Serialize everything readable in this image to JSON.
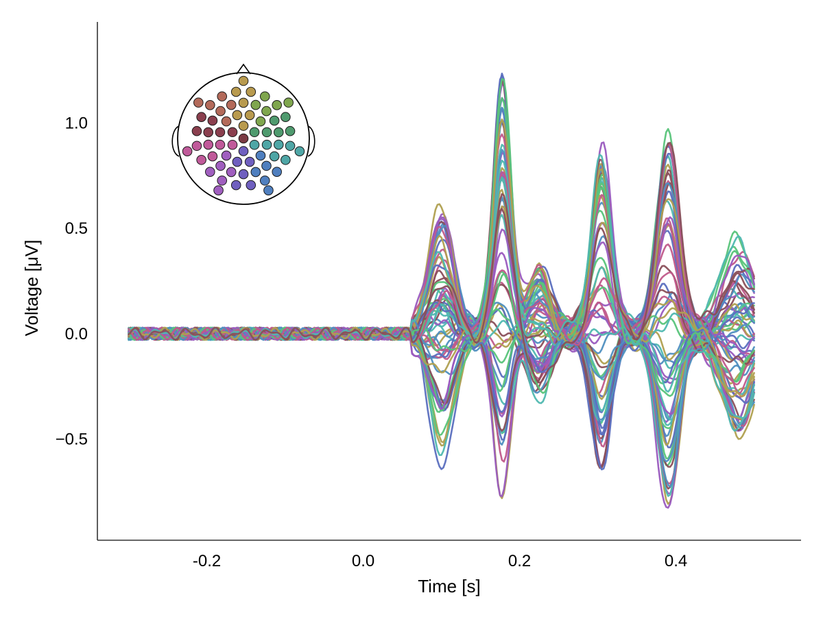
{
  "chart_data": {
    "type": "line",
    "title": "",
    "xlabel": "Time [s]",
    "ylabel": "Voltage [μV]",
    "xlim": [
      -0.34,
      0.56
    ],
    "ylim": [
      -0.98,
      1.48
    ],
    "x_range": [
      -0.3,
      0.5
    ],
    "xticks": [
      -0.2,
      0.0,
      0.2,
      0.4
    ],
    "xtick_labels": [
      "-0.2",
      "0.0",
      "0.2",
      "0.4"
    ],
    "yticks": [
      -0.5,
      0.0,
      0.5,
      1.0
    ],
    "ytick_labels": [
      "−0.5",
      "0.0",
      "0.5",
      "1.0"
    ],
    "grid": false,
    "legend": "topoplot inset, top-left",
    "n_channels": 64,
    "components": [
      {
        "t": 0.1,
        "width": 0.022
      },
      {
        "t": 0.178,
        "width": 0.016
      },
      {
        "t": 0.225,
        "width": 0.02
      },
      {
        "t": 0.305,
        "width": 0.018
      },
      {
        "t": 0.39,
        "width": 0.02
      },
      {
        "t": 0.48,
        "width": 0.03
      }
    ],
    "envelope": {
      "t": [
        0.1,
        0.178,
        0.225,
        0.305,
        0.39,
        0.48
      ],
      "max": [
        0.63,
        1.37,
        0.33,
        0.93,
        0.98,
        0.46
      ],
      "min": [
        -0.6,
        -0.74,
        -0.3,
        -0.66,
        -0.86,
        -0.48
      ]
    },
    "colors": [
      "#5b6fbf",
      "#4f8fc0",
      "#58c47a",
      "#9a5bbf",
      "#c05a8a",
      "#b0a050",
      "#4fb8b0",
      "#8a4f5a"
    ]
  },
  "inset": {
    "type": "topoplot",
    "electrode_count": 64,
    "head_stroke": "#000000"
  }
}
